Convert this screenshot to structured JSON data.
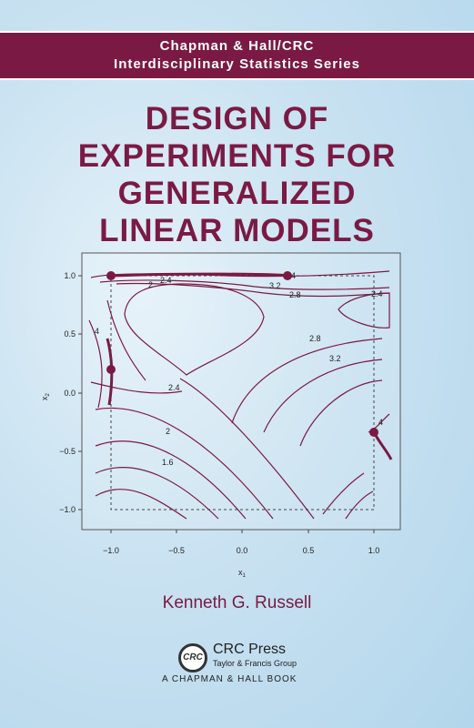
{
  "series": {
    "line1": "Chapman & Hall/CRC",
    "line2": "Interdisciplinary Statistics Series"
  },
  "title": {
    "line1": "DESIGN OF",
    "line2": "EXPERIMENTS FOR",
    "line3": "GENERALIZED",
    "line4": "LINEAR MODELS"
  },
  "author": "Kenneth G. Russell",
  "publisher": {
    "logo_text": "CRC",
    "name": "CRC Press",
    "group": "Taylor & Francis Group",
    "imprint": "A CHAPMAN & HALL BOOK"
  },
  "colors": {
    "brand": "#7a1a44",
    "background": "#c9e2f1"
  },
  "figure": {
    "xlabel": "x",
    "xlabel_sub": "1",
    "ylabel": "x",
    "ylabel_sub": "2",
    "x_ticks": [
      "−1.0",
      "−0.5",
      "0.0",
      "0.5",
      "1.0"
    ],
    "y_ticks": [
      "1.0",
      "0.5",
      "0.0",
      "−0.5",
      "−1.0"
    ],
    "contour_labels": {
      "c24_top": "2.4",
      "c2_top": "2",
      "c4_top": "4",
      "c32_top": "3.2",
      "c28_top": "2.8",
      "c24_right": "2.4",
      "c4_left": "4",
      "c28_mid": "2.8",
      "c32_mid": "3.2",
      "c24_mid": "2.4",
      "c2_low": "2",
      "c16_low": "1.6",
      "c4_right": "4"
    },
    "design_points": [
      {
        "x1": -1.0,
        "x2": 1.0
      },
      {
        "x1": 0.33,
        "x2": 1.0
      },
      {
        "x1": -1.0,
        "x2": 0.2
      },
      {
        "x1": 1.0,
        "x2": -0.33
      }
    ],
    "chart_data": {
      "type": "contour",
      "xlabel": "x1",
      "ylabel": "x2",
      "xlim": [
        -1.0,
        1.0
      ],
      "ylim": [
        -1.0,
        1.0
      ],
      "contour_levels": [
        1.6,
        2,
        2.4,
        2.8,
        3.2,
        4
      ],
      "points": [
        {
          "x": -1.0,
          "y": 1.0
        },
        {
          "x": 0.33,
          "y": 1.0
        },
        {
          "x": -1.0,
          "y": 0.2
        },
        {
          "x": 1.0,
          "y": -0.33
        }
      ]
    }
  }
}
